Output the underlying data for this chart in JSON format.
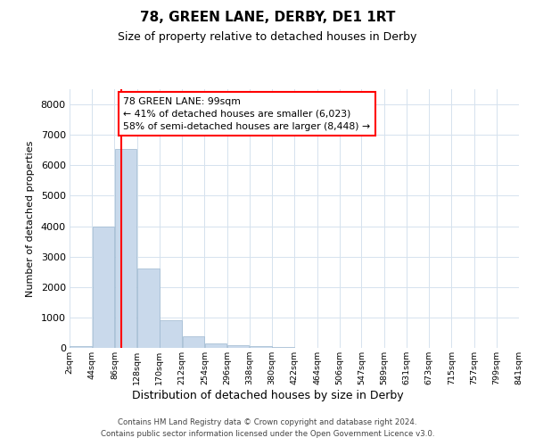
{
  "title": "78, GREEN LANE, DERBY, DE1 1RT",
  "subtitle": "Size of property relative to detached houses in Derby",
  "xlabel": "Distribution of detached houses by size in Derby",
  "ylabel": "Number of detached properties",
  "bar_color": "#c9d9eb",
  "bar_edgecolor": "#9db8d0",
  "annotation_line1": "78 GREEN LANE: 99sqm",
  "annotation_line2": "← 41% of detached houses are smaller (6,023)",
  "annotation_line3": "58% of semi-detached houses are larger (8,448) →",
  "annotation_boxcolor": "white",
  "annotation_edgecolor": "red",
  "redline_x": 99,
  "bin_edges": [
    2,
    44,
    86,
    128,
    170,
    212,
    254,
    296,
    338,
    380,
    422,
    464,
    506,
    547,
    589,
    631,
    673,
    715,
    757,
    799,
    841
  ],
  "bin_labels": [
    "2sqm",
    "44sqm",
    "86sqm",
    "128sqm",
    "170sqm",
    "212sqm",
    "254sqm",
    "296sqm",
    "338sqm",
    "380sqm",
    "422sqm",
    "464sqm",
    "506sqm",
    "547sqm",
    "589sqm",
    "631sqm",
    "673sqm",
    "715sqm",
    "757sqm",
    "799sqm",
    "841sqm"
  ],
  "bar_heights": [
    60,
    3980,
    6550,
    2600,
    900,
    380,
    150,
    100,
    50,
    20,
    10,
    5,
    2,
    1,
    0,
    0,
    0,
    0,
    0,
    0
  ],
  "ylim": [
    0,
    8500
  ],
  "yticks": [
    0,
    1000,
    2000,
    3000,
    4000,
    5000,
    6000,
    7000,
    8000
  ],
  "footer_line1": "Contains HM Land Registry data © Crown copyright and database right 2024.",
  "footer_line2": "Contains public sector information licensed under the Open Government Licence v3.0.",
  "background_color": "#ffffff",
  "grid_color": "#d5e2ee"
}
